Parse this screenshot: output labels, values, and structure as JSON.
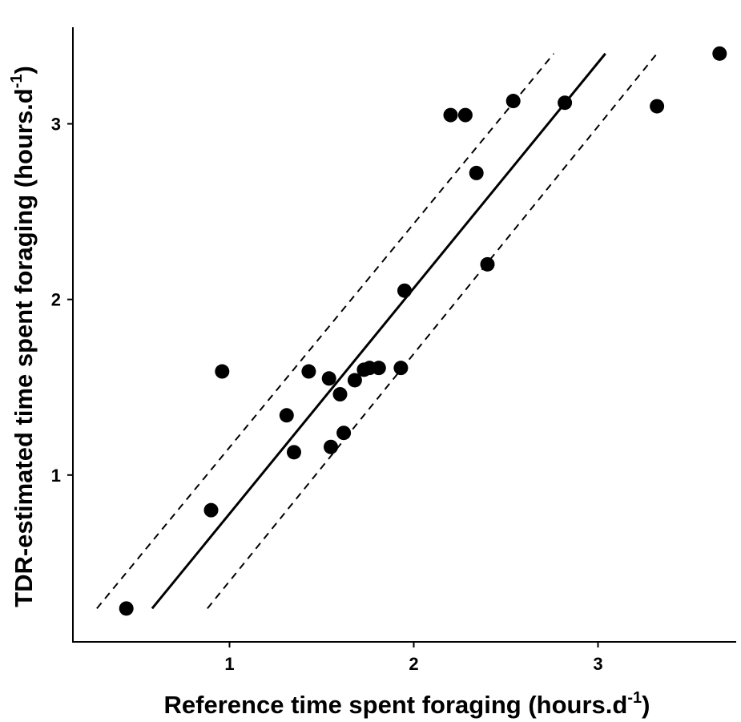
{
  "chart_data": {
    "type": "scatter",
    "xlabel": "Reference time spent foraging (hours.d",
    "xlabel_sup": "-1",
    "xlabel_end": ")",
    "ylabel": "TDR-estimated time spent foraging (hours.d",
    "ylabel_sup": "-1",
    "ylabel_end": ")",
    "xlim": [
      0.15,
      3.75
    ],
    "ylim": [
      0.05,
      3.55
    ],
    "xticks": [
      1,
      2,
      3
    ],
    "yticks": [
      1,
      2,
      3
    ],
    "grid": false,
    "points": {
      "x": [
        0.44,
        0.9,
        0.96,
        1.31,
        1.35,
        1.43,
        1.54,
        1.55,
        1.6,
        1.62,
        1.68,
        1.73,
        1.76,
        1.81,
        1.93,
        1.95,
        2.2,
        2.28,
        2.34,
        2.4,
        2.54,
        2.82,
        3.32,
        3.66
      ],
      "y": [
        0.24,
        0.8,
        1.59,
        1.34,
        1.13,
        1.59,
        1.55,
        1.16,
        1.46,
        1.24,
        1.54,
        1.6,
        1.61,
        1.61,
        1.61,
        2.05,
        3.05,
        3.05,
        2.72,
        2.2,
        3.13,
        3.12,
        3.1,
        3.4
      ]
    },
    "fit_line": {
      "x": [
        0.58,
        3.04
      ],
      "y": [
        0.24,
        3.4
      ]
    },
    "ci_upper": {
      "x": [
        0.28,
        2.76
      ],
      "y": [
        0.24,
        3.4
      ]
    },
    "ci_lower": {
      "x": [
        0.88,
        3.32
      ],
      "y": [
        0.24,
        3.4
      ]
    }
  }
}
